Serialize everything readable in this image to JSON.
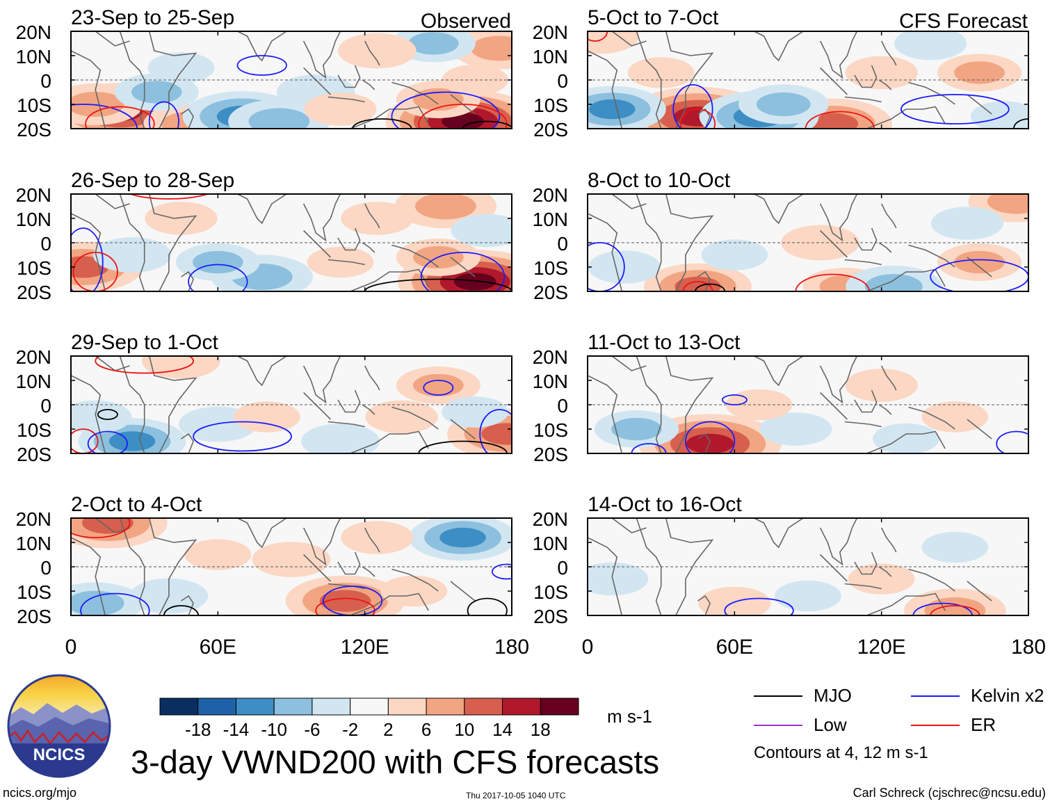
{
  "page": {
    "main_title": "3-day VWND200 with CFS forecasts",
    "site": "ncics.org/mjo",
    "timestamp": "Thu 2017-10-05 1040 UTC",
    "author": "Carl Schreck (cjschrec@ncsu.edu)",
    "logo_text": "NCICS",
    "units": "m s-1",
    "contour_note": "Contours at 4, 12 m s-1"
  },
  "legend": {
    "items": [
      {
        "label": "MJO",
        "color": "#000000"
      },
      {
        "label": "Kelvin x2",
        "color": "#1a1aff"
      },
      {
        "label": "Low",
        "color": "#9933cc"
      },
      {
        "label": "ER",
        "color": "#ee1111"
      }
    ]
  },
  "colorbar": {
    "colors": [
      "#0b2e60",
      "#1f62a8",
      "#3d8ec4",
      "#8cc0de",
      "#d2e6f2",
      "#f7f7f7",
      "#fbd7c4",
      "#f2a582",
      "#d6604d",
      "#b2182b",
      "#67001f"
    ],
    "labels": [
      "-18",
      "-14",
      "-10",
      "-6",
      "-2",
      "2",
      "6",
      "10",
      "14",
      "18"
    ]
  },
  "chart_data": {
    "type": "heatmap",
    "variable": "VWND200",
    "column_titles": [
      "Observed",
      "CFS Forecast"
    ],
    "x_ticks": [
      "0",
      "60E",
      "120E",
      "180"
    ],
    "y_ticks": [
      "20N",
      "10N",
      "0",
      "10S",
      "20S"
    ],
    "x_range_deg": [
      0,
      180
    ],
    "y_range_deg": [
      -20,
      20
    ],
    "panels": [
      {
        "title": "23-Sep to 25-Sep",
        "column": "Observed",
        "row": 0,
        "blobs": [
          {
            "lon": 20,
            "lat": -13,
            "v": 15
          },
          {
            "lon": 10,
            "lat": -10,
            "v": 8
          },
          {
            "lon": 48,
            "lat": -18,
            "v": 7
          },
          {
            "lon": 160,
            "lat": -17,
            "v": 18
          },
          {
            "lon": 150,
            "lat": -8,
            "v": 6
          },
          {
            "lon": 175,
            "lat": 13,
            "v": 8
          },
          {
            "lon": 165,
            "lat": 0,
            "v": 3
          },
          {
            "lon": 70,
            "lat": -15,
            "v": -12
          },
          {
            "lon": 85,
            "lat": -17,
            "v": -9
          },
          {
            "lon": 100,
            "lat": -5,
            "v": -5
          },
          {
            "lon": 35,
            "lat": -5,
            "v": -6
          },
          {
            "lon": 148,
            "lat": 15,
            "v": -6
          },
          {
            "lon": 125,
            "lat": 12,
            "v": 5
          },
          {
            "lon": 110,
            "lat": -12,
            "v": 4
          },
          {
            "lon": 45,
            "lat": 5,
            "v": -3
          }
        ],
        "contours": [
          {
            "type": "Kelvin x2",
            "lon": 5,
            "lat": -20,
            "rx": 22,
            "ry": 10
          },
          {
            "type": "Kelvin x2",
            "lon": 38,
            "lat": -17,
            "rx": 6,
            "ry": 8
          },
          {
            "type": "Kelvin x2",
            "lon": 78,
            "lat": 6,
            "rx": 10,
            "ry": 4
          },
          {
            "type": "Kelvin x2",
            "lon": 153,
            "lat": -15,
            "rx": 22,
            "ry": 10
          },
          {
            "type": "ER",
            "lon": 20,
            "lat": -18,
            "rx": 14,
            "ry": 7
          },
          {
            "type": "ER",
            "lon": 160,
            "lat": -18,
            "rx": 18,
            "ry": 8
          },
          {
            "type": "MJO",
            "lon": 127,
            "lat": -20,
            "rx": 12,
            "ry": 4
          },
          {
            "type": "MJO",
            "lon": 170,
            "lat": -20,
            "rx": 10,
            "ry": 3
          }
        ]
      },
      {
        "title": "26-Sep to 28-Sep",
        "column": "Observed",
        "row": 1,
        "blobs": [
          {
            "lon": 5,
            "lat": -10,
            "v": 12
          },
          {
            "lon": 165,
            "lat": -16,
            "v": 18
          },
          {
            "lon": 150,
            "lat": -6,
            "v": 6
          },
          {
            "lon": 153,
            "lat": 15,
            "v": 9
          },
          {
            "lon": 45,
            "lat": 10,
            "v": 4
          },
          {
            "lon": 78,
            "lat": -14,
            "v": -9
          },
          {
            "lon": 60,
            "lat": -8,
            "v": -6
          },
          {
            "lon": 25,
            "lat": -5,
            "v": -5
          },
          {
            "lon": 170,
            "lat": 5,
            "v": -4
          },
          {
            "lon": 125,
            "lat": 10,
            "v": 4
          },
          {
            "lon": 110,
            "lat": -8,
            "v": 3
          }
        ],
        "contours": [
          {
            "type": "Kelvin x2",
            "lon": 5,
            "lat": -8,
            "rx": 8,
            "ry": 14
          },
          {
            "type": "Kelvin x2",
            "lon": 60,
            "lat": -16,
            "rx": 12,
            "ry": 7
          },
          {
            "type": "Kelvin x2",
            "lon": 160,
            "lat": -14,
            "rx": 17,
            "ry": 10
          },
          {
            "type": "ER",
            "lon": 40,
            "lat": 22,
            "rx": 18,
            "ry": 4
          },
          {
            "type": "ER",
            "lon": 10,
            "lat": -12,
            "rx": 9,
            "ry": 8
          },
          {
            "type": "MJO",
            "lon": 150,
            "lat": -20,
            "rx": 30,
            "ry": 5
          }
        ]
      },
      {
        "title": "29-Sep to 1-Oct",
        "column": "Observed",
        "row": 2,
        "blobs": [
          {
            "lon": 178,
            "lat": -12,
            "v": 12
          },
          {
            "lon": 150,
            "lat": 8,
            "v": 6
          },
          {
            "lon": 135,
            "lat": -5,
            "v": 4
          },
          {
            "lon": 45,
            "lat": 18,
            "v": 5
          },
          {
            "lon": 25,
            "lat": -15,
            "v": -10
          },
          {
            "lon": 60,
            "lat": -8,
            "v": -5
          },
          {
            "lon": 110,
            "lat": -15,
            "v": -5
          },
          {
            "lon": 80,
            "lat": -5,
            "v": 3
          },
          {
            "lon": 10,
            "lat": -5,
            "v": -4
          },
          {
            "lon": 165,
            "lat": -3,
            "v": -3
          }
        ],
        "contours": [
          {
            "type": "ER",
            "lon": 30,
            "lat": 18,
            "rx": 20,
            "ry": 5
          },
          {
            "type": "ER",
            "lon": 5,
            "lat": -15,
            "rx": 6,
            "ry": 5
          },
          {
            "type": "Kelvin x2",
            "lon": 70,
            "lat": -13,
            "rx": 20,
            "ry": 6
          },
          {
            "type": "Kelvin x2",
            "lon": 15,
            "lat": -16,
            "rx": 8,
            "ry": 5
          },
          {
            "type": "Kelvin x2",
            "lon": 150,
            "lat": 7,
            "rx": 6,
            "ry": 3
          },
          {
            "type": "Kelvin x2",
            "lon": 175,
            "lat": -12,
            "rx": 8,
            "ry": 10
          },
          {
            "type": "MJO",
            "lon": 15,
            "lat": -4,
            "rx": 4,
            "ry": 2
          },
          {
            "type": "MJO",
            "lon": 160,
            "lat": -20,
            "rx": 18,
            "ry": 5
          }
        ]
      },
      {
        "title": "2-Oct to 4-Oct",
        "column": "Observed",
        "row": 3,
        "blobs": [
          {
            "lon": 15,
            "lat": 18,
            "v": 12
          },
          {
            "lon": 112,
            "lat": -14,
            "v": 12
          },
          {
            "lon": 90,
            "lat": 3,
            "v": 5
          },
          {
            "lon": 160,
            "lat": 12,
            "v": -10
          },
          {
            "lon": 10,
            "lat": -15,
            "v": -8
          },
          {
            "lon": 40,
            "lat": -12,
            "v": -5
          },
          {
            "lon": 140,
            "lat": -10,
            "v": 3
          },
          {
            "lon": 60,
            "lat": 5,
            "v": 3
          },
          {
            "lon": 125,
            "lat": 12,
            "v": 4
          }
        ],
        "contours": [
          {
            "type": "ER",
            "lon": 10,
            "lat": 18,
            "rx": 14,
            "ry": 6
          },
          {
            "type": "ER",
            "lon": 112,
            "lat": -18,
            "rx": 12,
            "ry": 5
          },
          {
            "type": "Kelvin x2",
            "lon": 18,
            "lat": -18,
            "rx": 14,
            "ry": 7
          },
          {
            "type": "Kelvin x2",
            "lon": 115,
            "lat": -14,
            "rx": 12,
            "ry": 6
          },
          {
            "type": "Kelvin x2",
            "lon": 178,
            "lat": -2,
            "rx": 6,
            "ry": 3
          },
          {
            "type": "MJO",
            "lon": 45,
            "lat": -20,
            "rx": 7,
            "ry": 4
          },
          {
            "type": "MJO",
            "lon": 170,
            "lat": -18,
            "rx": 8,
            "ry": 5
          }
        ]
      },
      {
        "title": "5-Oct to 7-Oct",
        "column": "CFS Forecast",
        "row": 0,
        "blobs": [
          {
            "lon": 45,
            "lat": -15,
            "v": 16
          },
          {
            "lon": 100,
            "lat": -18,
            "v": 12
          },
          {
            "lon": 160,
            "lat": 3,
            "v": 6
          },
          {
            "lon": 120,
            "lat": 3,
            "v": 4
          },
          {
            "lon": 10,
            "lat": -12,
            "v": -10
          },
          {
            "lon": 70,
            "lat": -15,
            "v": -12
          },
          {
            "lon": 80,
            "lat": -10,
            "v": -7
          },
          {
            "lon": 170,
            "lat": -15,
            "v": -3
          },
          {
            "lon": 5,
            "lat": 18,
            "v": 5
          },
          {
            "lon": 30,
            "lat": 3,
            "v": 3
          },
          {
            "lon": 140,
            "lat": 15,
            "v": -4
          }
        ],
        "contours": [
          {
            "type": "Kelvin x2",
            "lon": 43,
            "lat": -12,
            "rx": 8,
            "ry": 10
          },
          {
            "type": "Kelvin x2",
            "lon": 150,
            "lat": -12,
            "rx": 22,
            "ry": 6
          },
          {
            "type": "ER",
            "lon": 45,
            "lat": -18,
            "rx": 7,
            "ry": 6
          },
          {
            "type": "ER",
            "lon": 103,
            "lat": -20,
            "rx": 14,
            "ry": 7
          },
          {
            "type": "ER",
            "lon": 3,
            "lat": 20,
            "rx": 5,
            "ry": 4
          },
          {
            "type": "MJO",
            "lon": 180,
            "lat": -20,
            "rx": 6,
            "ry": 4
          }
        ]
      },
      {
        "title": "8-Oct to 10-Oct",
        "column": "CFS Forecast",
        "row": 1,
        "blobs": [
          {
            "lon": 45,
            "lat": -18,
            "v": 10
          },
          {
            "lon": 95,
            "lat": 0,
            "v": 5
          },
          {
            "lon": 175,
            "lat": 17,
            "v": 8
          },
          {
            "lon": 160,
            "lat": -8,
            "v": 6
          },
          {
            "lon": 105,
            "lat": -18,
            "v": 6
          },
          {
            "lon": 125,
            "lat": -18,
            "v": -8
          },
          {
            "lon": 15,
            "lat": -10,
            "v": -4
          },
          {
            "lon": 60,
            "lat": -5,
            "v": -3
          },
          {
            "lon": 155,
            "lat": 8,
            "v": -4
          }
        ],
        "contours": [
          {
            "type": "Kelvin x2",
            "lon": 5,
            "lat": -10,
            "rx": 10,
            "ry": 10
          },
          {
            "type": "Kelvin x2",
            "lon": 160,
            "lat": -14,
            "rx": 20,
            "ry": 7
          },
          {
            "type": "ER",
            "lon": 100,
            "lat": -20,
            "rx": 15,
            "ry": 7
          },
          {
            "type": "ER",
            "lon": 45,
            "lat": -20,
            "rx": 6,
            "ry": 4
          },
          {
            "type": "MJO",
            "lon": 50,
            "lat": -20,
            "rx": 6,
            "ry": 3
          }
        ]
      },
      {
        "title": "11-Oct to 13-Oct",
        "column": "CFS Forecast",
        "row": 2,
        "blobs": [
          {
            "lon": 50,
            "lat": -16,
            "v": 16
          },
          {
            "lon": 120,
            "lat": 8,
            "v": 4
          },
          {
            "lon": 150,
            "lat": -5,
            "v": 3
          },
          {
            "lon": 20,
            "lat": -10,
            "v": -6
          },
          {
            "lon": 85,
            "lat": -10,
            "v": -4
          },
          {
            "lon": 130,
            "lat": -14,
            "v": -3
          },
          {
            "lon": 70,
            "lat": 0,
            "v": 3
          }
        ],
        "contours": [
          {
            "type": "Kelvin x2",
            "lon": 50,
            "lat": -15,
            "rx": 10,
            "ry": 8
          },
          {
            "type": "Kelvin x2",
            "lon": 25,
            "lat": -20,
            "rx": 7,
            "ry": 4
          },
          {
            "type": "Kelvin x2",
            "lon": 175,
            "lat": -16,
            "rx": 8,
            "ry": 5
          },
          {
            "type": "Kelvin x2",
            "lon": 60,
            "lat": 2,
            "rx": 5,
            "ry": 2
          }
        ]
      },
      {
        "title": "14-Oct to 16-Oct",
        "column": "CFS Forecast",
        "row": 3,
        "blobs": [
          {
            "lon": 150,
            "lat": -18,
            "v": 9
          },
          {
            "lon": 60,
            "lat": -15,
            "v": 4
          },
          {
            "lon": 120,
            "lat": -5,
            "v": 3
          },
          {
            "lon": 10,
            "lat": -5,
            "v": -4
          },
          {
            "lon": 150,
            "lat": 8,
            "v": -3
          },
          {
            "lon": 90,
            "lat": -12,
            "v": -3
          }
        ],
        "contours": [
          {
            "type": "Kelvin x2",
            "lon": 70,
            "lat": -18,
            "rx": 14,
            "ry": 5
          },
          {
            "type": "Kelvin x2",
            "lon": 145,
            "lat": -20,
            "rx": 12,
            "ry": 5
          },
          {
            "type": "ER",
            "lon": 150,
            "lat": -20,
            "rx": 10,
            "ry": 4
          }
        ]
      }
    ]
  }
}
